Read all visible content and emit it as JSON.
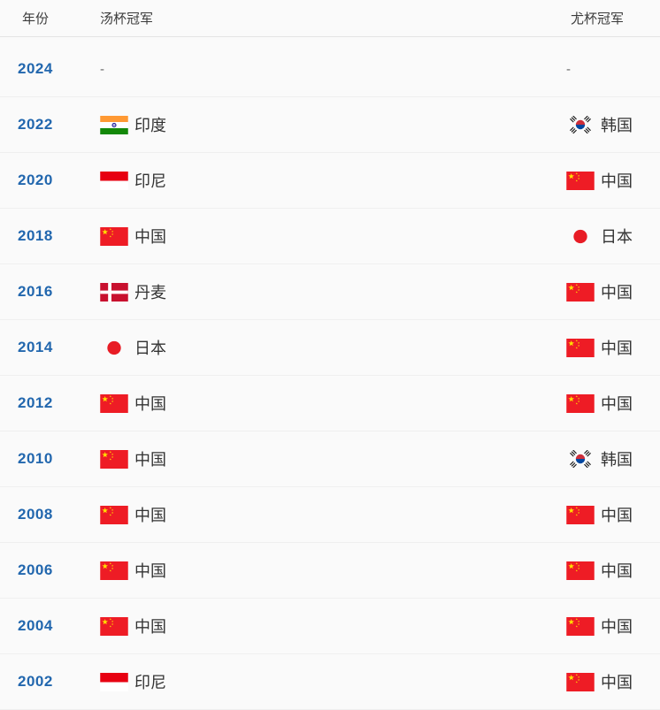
{
  "table": {
    "columns": [
      {
        "key": "year",
        "label": "年份"
      },
      {
        "key": "thomas",
        "label": "汤杯冠军"
      },
      {
        "key": "uber",
        "label": "尤杯冠军"
      }
    ],
    "rows": [
      {
        "year": "2024",
        "thomas": {
          "flag": "",
          "label": "-"
        },
        "uber": {
          "flag": "",
          "label": "-"
        }
      },
      {
        "year": "2022",
        "thomas": {
          "flag": "india-flag",
          "label": "印度"
        },
        "uber": {
          "flag": "south-korea-flag",
          "label": "韩国"
        }
      },
      {
        "year": "2020",
        "thomas": {
          "flag": "indonesia-flag",
          "label": "印尼"
        },
        "uber": {
          "flag": "china-flag",
          "label": "中国"
        }
      },
      {
        "year": "2018",
        "thomas": {
          "flag": "china-flag",
          "label": "中国"
        },
        "uber": {
          "flag": "japan-flag",
          "label": "日本"
        }
      },
      {
        "year": "2016",
        "thomas": {
          "flag": "denmark-flag",
          "label": "丹麦"
        },
        "uber": {
          "flag": "china-flag",
          "label": "中国"
        }
      },
      {
        "year": "2014",
        "thomas": {
          "flag": "japan-flag",
          "label": "日本"
        },
        "uber": {
          "flag": "china-flag",
          "label": "中国"
        }
      },
      {
        "year": "2012",
        "thomas": {
          "flag": "china-flag",
          "label": "中国"
        },
        "uber": {
          "flag": "china-flag",
          "label": "中国"
        }
      },
      {
        "year": "2010",
        "thomas": {
          "flag": "china-flag",
          "label": "中国"
        },
        "uber": {
          "flag": "south-korea-flag",
          "label": "韩国"
        }
      },
      {
        "year": "2008",
        "thomas": {
          "flag": "china-flag",
          "label": "中国"
        },
        "uber": {
          "flag": "china-flag",
          "label": "中国"
        }
      },
      {
        "year": "2006",
        "thomas": {
          "flag": "china-flag",
          "label": "中国"
        },
        "uber": {
          "flag": "china-flag",
          "label": "中国"
        }
      },
      {
        "year": "2004",
        "thomas": {
          "flag": "china-flag",
          "label": "中国"
        },
        "uber": {
          "flag": "china-flag",
          "label": "中国"
        }
      },
      {
        "year": "2002",
        "thomas": {
          "flag": "indonesia-flag",
          "label": "印尼"
        },
        "uber": {
          "flag": "china-flag",
          "label": "中国"
        }
      }
    ],
    "colors": {
      "background": "#fafafa",
      "year_link": "#2267ae",
      "header_text": "#3b3b3b",
      "body_text": "#333333",
      "header_divider": "#e4e4e4",
      "row_divider": "#efefef",
      "china_red": "#ee1c25",
      "star_yellow": "#ffde00",
      "indonesia_red": "#e70011",
      "denmark_red": "#c8102e",
      "japan_red": "#e81c25",
      "india_saffron": "#ff9933",
      "india_green": "#138808",
      "korea_red": "#cd2e3a",
      "korea_blue": "#0047a0"
    }
  }
}
